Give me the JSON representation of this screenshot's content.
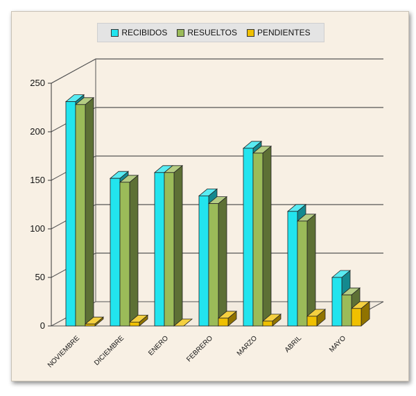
{
  "chart_data": {
    "type": "bar",
    "categories": [
      "NOVIEMBRE",
      "DICIEMBRE",
      "ENERO",
      "FEBRERO",
      "MARZO",
      "ABRIL",
      "MAYO"
    ],
    "series": [
      {
        "name": "RECIBIDOS",
        "values": [
          231,
          152,
          158,
          134,
          183,
          118,
          50
        ],
        "color": "#22e4ee"
      },
      {
        "name": "RESUELTOS",
        "values": [
          228,
          148,
          158,
          126,
          178,
          108,
          32
        ],
        "color": "#9bbb59"
      },
      {
        "name": "PENDIENTES",
        "values": [
          2,
          4,
          0,
          8,
          5,
          10,
          18
        ],
        "color": "#f0c000"
      }
    ],
    "ylim": [
      0,
      250
    ],
    "yticks": [
      0,
      50,
      100,
      150,
      200,
      250
    ],
    "legend": "top-center",
    "grid": true,
    "style": "3d-column"
  }
}
